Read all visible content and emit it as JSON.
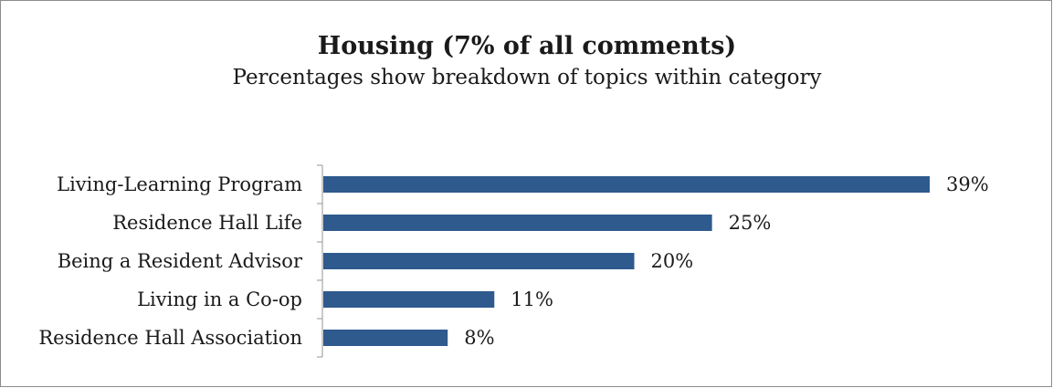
{
  "chart_data": {
    "type": "bar",
    "orientation": "horizontal",
    "title": "Housing (7% of all comments)",
    "subtitle": "Percentages show breakdown of topics within category",
    "categories": [
      "Living-Learning Program",
      "Residence Hall Life",
      "Being a Resident Advisor",
      "Living in a Co-op",
      "Residence Hall Association"
    ],
    "values": [
      39,
      25,
      20,
      11,
      8
    ],
    "data_labels": [
      "39%",
      "25%",
      "20%",
      "11%",
      "8%"
    ],
    "xlim": [
      0,
      39
    ],
    "grid": false,
    "legend": "none",
    "bar_color": "#2e5a8e"
  }
}
